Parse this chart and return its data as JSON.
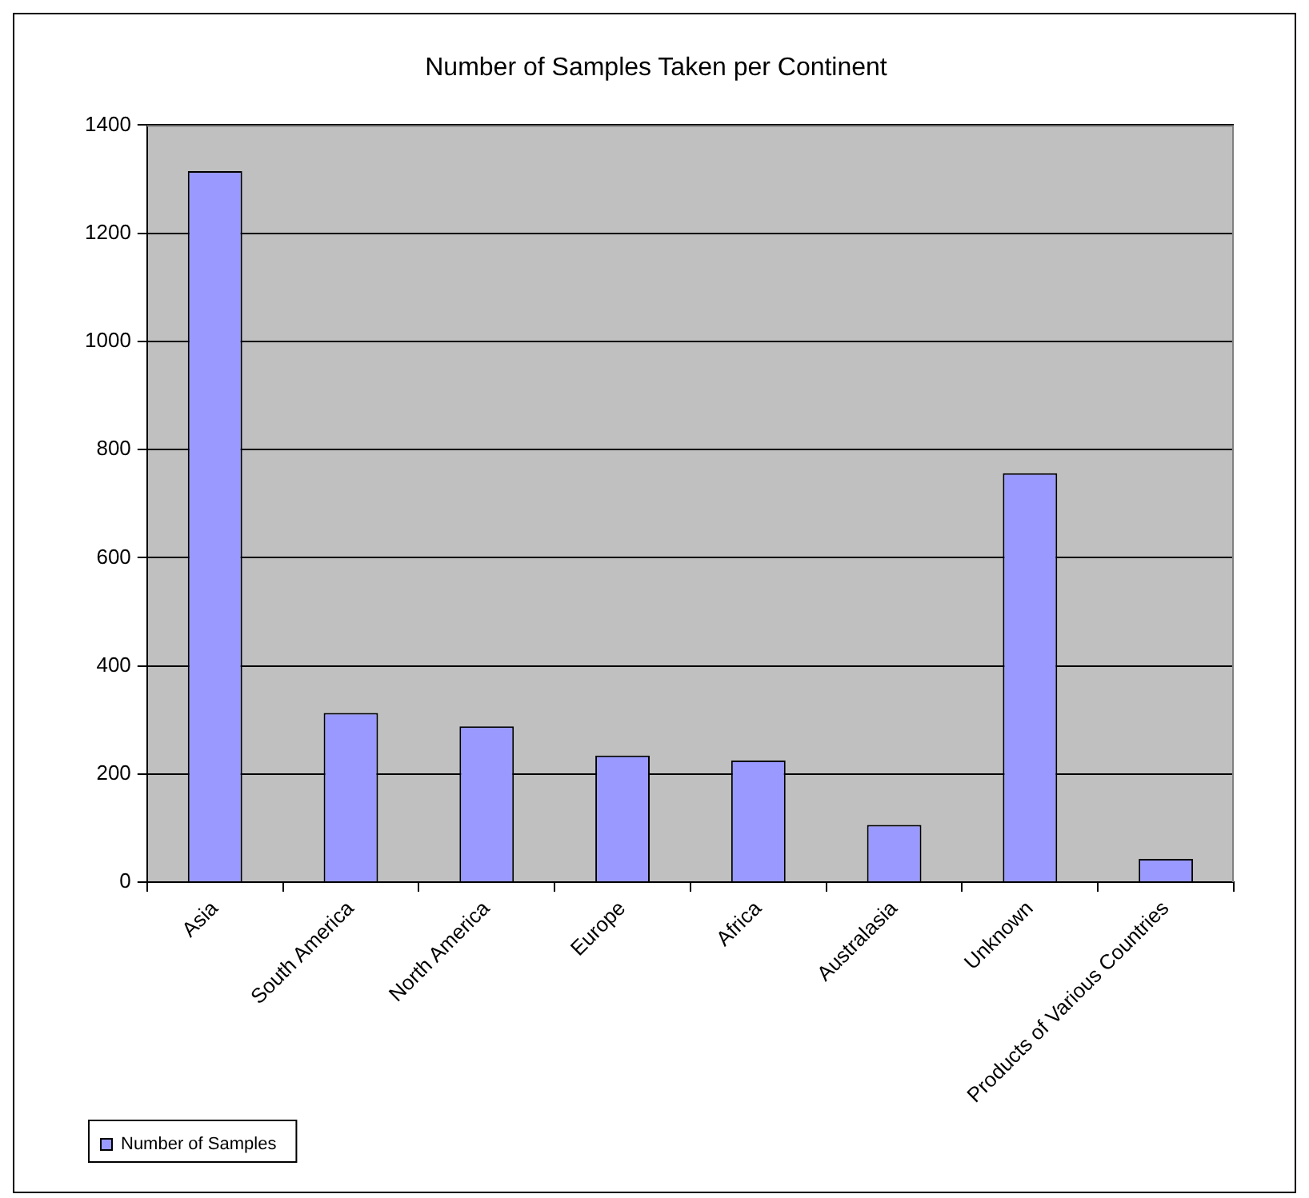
{
  "chart_data": {
    "type": "bar",
    "title": "Number of Samples Taken per Continent",
    "categories": [
      "Asia",
      "South America",
      "North America",
      "Europe",
      "Africa",
      "Australasia",
      "Unknown",
      "Products of Various Countries"
    ],
    "series": [
      {
        "name": "Number of Samples",
        "color": "#9999ff",
        "values": [
          1315,
          313,
          288,
          234,
          225,
          106,
          756,
          43
        ]
      }
    ],
    "ylim": [
      0,
      1400
    ],
    "yticks": [
      0,
      200,
      400,
      600,
      800,
      1000,
      1200,
      1400
    ],
    "grid": "y",
    "legend": "bottom left"
  }
}
